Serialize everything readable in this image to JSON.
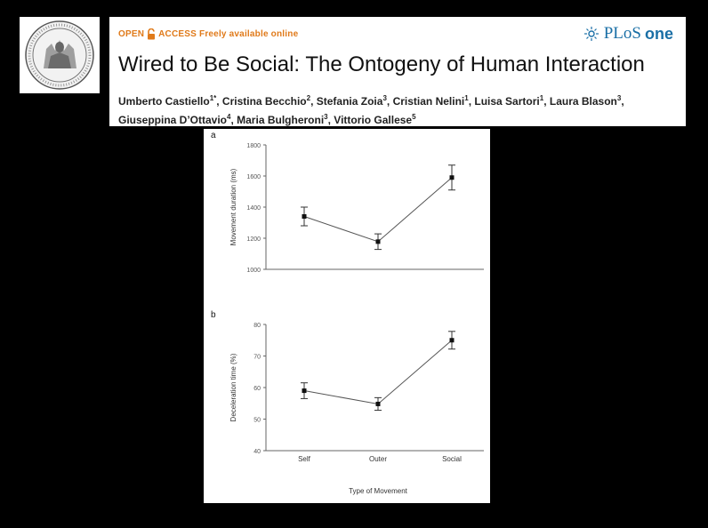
{
  "header": {
    "open_access": "OPEN",
    "access_label": "ACCESS",
    "freely_available": "Freely available online",
    "plos": "PLoS",
    "one": "one",
    "title": "Wired to Be Social: The Ontogeny of Human Interaction",
    "authors": [
      {
        "name": "Umberto Castiello",
        "sup": "1*"
      },
      {
        "name": "Cristina Becchio",
        "sup": "2"
      },
      {
        "name": "Stefania Zoia",
        "sup": "3"
      },
      {
        "name": "Cristian Nelini",
        "sup": "1"
      },
      {
        "name": "Luisa Sartori",
        "sup": "1"
      },
      {
        "name": "Laura Blason",
        "sup": "3"
      },
      {
        "name": "Giuseppina D’Ottavio",
        "sup": "4"
      },
      {
        "name": "Maria Bulgheroni",
        "sup": "3"
      },
      {
        "name": "Vittorio Gallese",
        "sup": "5"
      }
    ]
  },
  "colors": {
    "accent_orange": "#e07a1a",
    "plos_blue": "#1a6fa6"
  },
  "seal": {
    "icon": "university-seal-icon"
  },
  "chart_data": [
    {
      "type": "line",
      "panel_label": "a",
      "categories": [
        "Self",
        "Outer",
        "Social"
      ],
      "values": [
        1340,
        1178,
        1590
      ],
      "errors": [
        60,
        50,
        80
      ],
      "ylabel": "Movement duration (ms)",
      "ylim": [
        1000,
        1800
      ],
      "yticks": [
        1000,
        1200,
        1400,
        1600,
        1800
      ]
    },
    {
      "type": "line",
      "panel_label": "b",
      "categories": [
        "Self",
        "Outer",
        "Social"
      ],
      "values": [
        59,
        54.8,
        75
      ],
      "errors": [
        2.5,
        2,
        2.8
      ],
      "ylabel": "Deceleration time (%)",
      "xlabel": "Type of Movement",
      "ylim": [
        40,
        80
      ],
      "yticks": [
        40,
        50,
        60,
        70,
        80
      ]
    }
  ]
}
